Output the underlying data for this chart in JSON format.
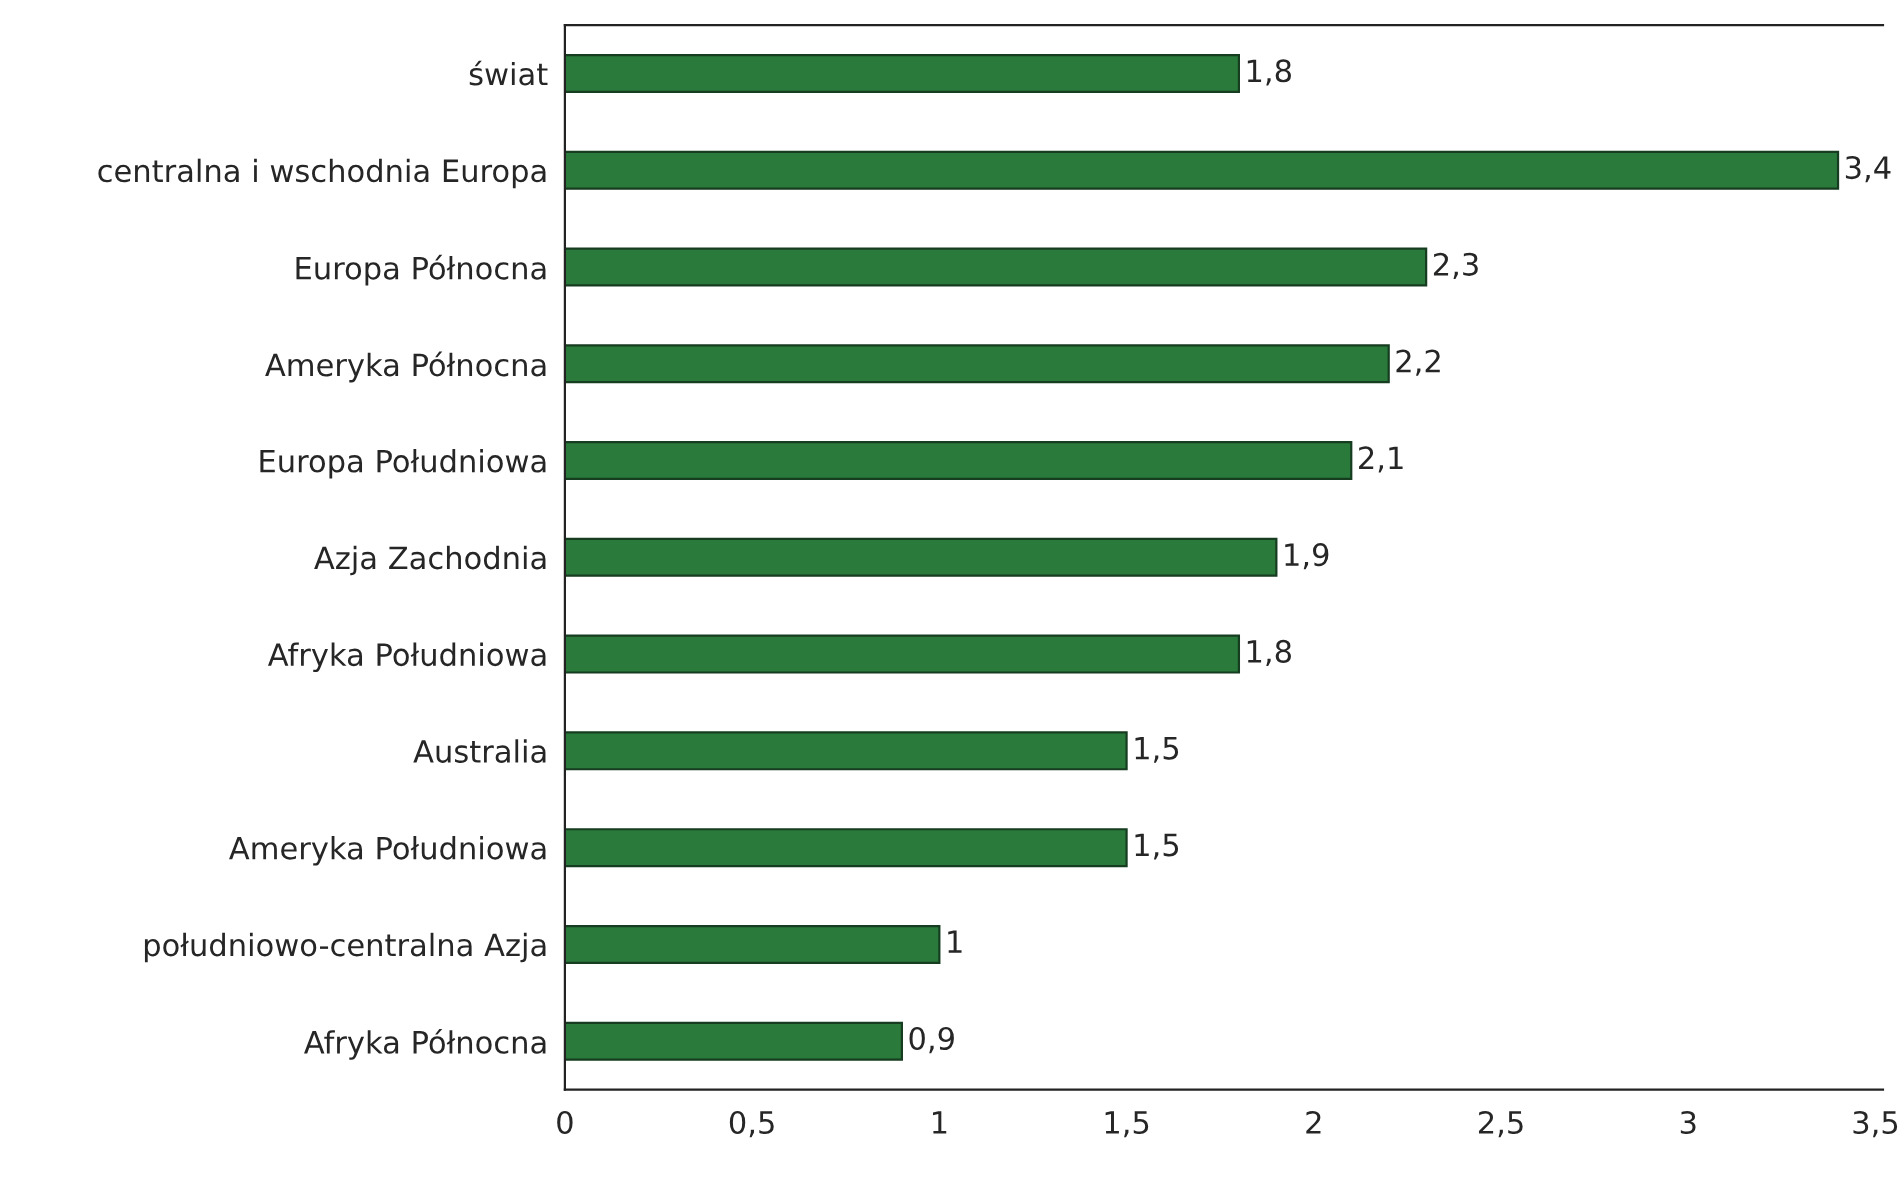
{
  "chart_data": {
    "type": "bar",
    "orientation": "horizontal",
    "categories": [
      "świat",
      "centralna i wschodnia Europa",
      "Europa Północna",
      "Ameryka Północna",
      "Europa Południowa",
      "Azja Zachodnia",
      "Afryka Południowa",
      "Australia",
      "Ameryka Południowa",
      "południowo-centralna Azja",
      "Afryka Północna"
    ],
    "values": [
      1.8,
      3.4,
      2.3,
      2.2,
      2.1,
      1.9,
      1.8,
      1.5,
      1.5,
      1,
      0.9
    ],
    "value_labels": [
      "1,8",
      "3,4",
      "2,3",
      "2,2",
      "2,1",
      "1,9",
      "1,8",
      "1,5",
      "1,5",
      "1",
      "0,9"
    ],
    "color": "#2a7a3c",
    "xlim": [
      0,
      3.52
    ],
    "xticks": [
      0,
      {
        "value": 0.5,
        "label": "0,5"
      },
      1,
      {
        "value": 1.5,
        "label": "1,5"
      },
      2,
      {
        "value": 2.5,
        "label": "2,5"
      },
      3,
      {
        "value": 3.5,
        "label": "3,5"
      }
    ],
    "grid": false,
    "legend": false
  }
}
